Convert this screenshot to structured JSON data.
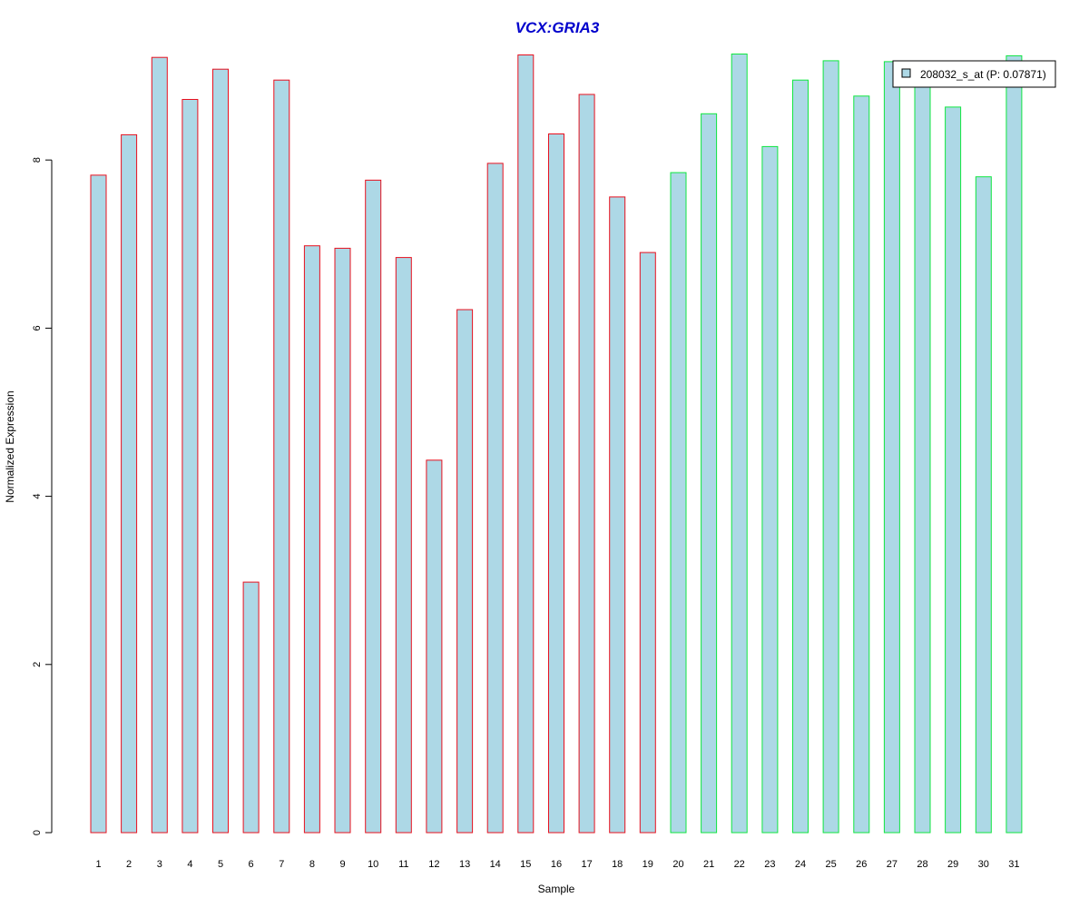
{
  "chart_data": {
    "type": "bar",
    "title": "VCX:GRIA3",
    "xlabel": "Sample",
    "ylabel": "Normalized Expression",
    "categories": [
      "1",
      "2",
      "3",
      "4",
      "5",
      "6",
      "7",
      "8",
      "9",
      "10",
      "11",
      "12",
      "13",
      "14",
      "15",
      "16",
      "17",
      "18",
      "19",
      "20",
      "21",
      "22",
      "23",
      "24",
      "25",
      "26",
      "27",
      "28",
      "29",
      "30",
      "31"
    ],
    "series": [
      {
        "name": "208032_s_at (P: 0.07871)",
        "values": [
          7.82,
          8.3,
          9.22,
          8.72,
          9.08,
          2.98,
          8.95,
          6.98,
          6.95,
          7.76,
          6.84,
          4.43,
          6.22,
          7.96,
          9.25,
          8.31,
          8.78,
          7.56,
          6.9,
          7.85,
          8.55,
          9.26,
          8.16,
          8.95,
          9.18,
          8.76,
          9.17,
          8.9,
          8.63,
          7.8,
          9.24
        ]
      }
    ],
    "groups": [
      {
        "samples": [
          1,
          2,
          3,
          4,
          5,
          6,
          7,
          8,
          9,
          10,
          11,
          12,
          13,
          14,
          15,
          16,
          17,
          18,
          19
        ],
        "border_color": "#e8101e"
      },
      {
        "samples": [
          20,
          21,
          22,
          23,
          24,
          25,
          26,
          27,
          28,
          29,
          30,
          31
        ],
        "border_color": "#10e640"
      }
    ],
    "bar_fill_color": "#add8e6",
    "title_color": "#0000cc",
    "ylim": [
      0,
      9.3
    ],
    "yticks": [
      "0",
      "2",
      "4",
      "6",
      "8"
    ],
    "grid": false,
    "legend_position": "top-right"
  }
}
